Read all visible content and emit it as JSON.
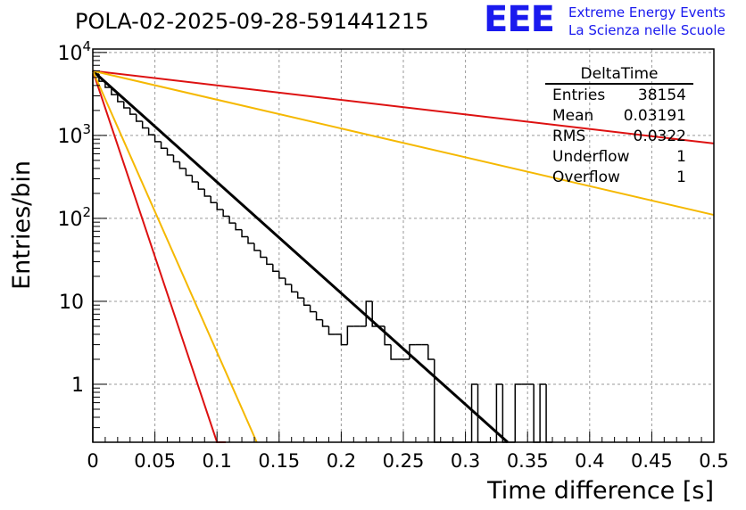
{
  "title": "POLA-02-2025-09-28-591441215",
  "logo": {
    "mark": "EEE",
    "line1": "Extreme Energy Events",
    "line2": "La Scienza nelle Scuole",
    "color": "#1a1aee"
  },
  "stats": {
    "name": "DeltaTime",
    "rows": [
      {
        "label": "Entries",
        "value": "38154"
      },
      {
        "label": "Mean",
        "value": "0.03191"
      },
      {
        "label": "RMS",
        "value": "0.0322"
      },
      {
        "label": "Underflow",
        "value": "1"
      },
      {
        "label": "Overflow",
        "value": "1"
      }
    ]
  },
  "chart_data": {
    "type": "line",
    "title": "POLA-02-2025-09-28-591441215",
    "xlabel": "Time difference [s]",
    "ylabel": "Entries/bin",
    "xlim": [
      0,
      0.5
    ],
    "ylim": [
      0.2,
      11000
    ],
    "yscale": "log",
    "grid": true,
    "xticks": [
      {
        "v": 0,
        "label": "0"
      },
      {
        "v": 0.05,
        "label": "0.05"
      },
      {
        "v": 0.1,
        "label": "0.1"
      },
      {
        "v": 0.15,
        "label": "0.15"
      },
      {
        "v": 0.2,
        "label": "0.2"
      },
      {
        "v": 0.25,
        "label": "0.25"
      },
      {
        "v": 0.3,
        "label": "0.3"
      },
      {
        "v": 0.35,
        "label": "0.35"
      },
      {
        "v": 0.4,
        "label": "0.4"
      },
      {
        "v": 0.45,
        "label": "0.45"
      },
      {
        "v": 0.5,
        "label": "0.5"
      }
    ],
    "yticks": [
      {
        "v": 1,
        "base": "1",
        "exp": ""
      },
      {
        "v": 10,
        "base": "10",
        "exp": ""
      },
      {
        "v": 100,
        "base": "10",
        "exp": "2"
      },
      {
        "v": 1000,
        "base": "10",
        "exp": "3"
      },
      {
        "v": 10000,
        "base": "10",
        "exp": "4"
      }
    ],
    "histogram": {
      "name": "DeltaTime",
      "color": "#000000",
      "bin_width": 0.005,
      "bins": [
        {
          "x0": 0.0,
          "y": 5500
        },
        {
          "x0": 0.005,
          "y": 4500
        },
        {
          "x0": 0.01,
          "y": 3800
        },
        {
          "x0": 0.015,
          "y": 3100
        },
        {
          "x0": 0.02,
          "y": 2550
        },
        {
          "x0": 0.025,
          "y": 2150
        },
        {
          "x0": 0.03,
          "y": 1800
        },
        {
          "x0": 0.035,
          "y": 1480
        },
        {
          "x0": 0.04,
          "y": 1230
        },
        {
          "x0": 0.045,
          "y": 1020
        },
        {
          "x0": 0.05,
          "y": 840
        },
        {
          "x0": 0.055,
          "y": 700
        },
        {
          "x0": 0.06,
          "y": 580
        },
        {
          "x0": 0.065,
          "y": 480
        },
        {
          "x0": 0.07,
          "y": 400
        },
        {
          "x0": 0.075,
          "y": 330
        },
        {
          "x0": 0.08,
          "y": 275
        },
        {
          "x0": 0.085,
          "y": 225
        },
        {
          "x0": 0.09,
          "y": 185
        },
        {
          "x0": 0.095,
          "y": 155
        },
        {
          "x0": 0.1,
          "y": 128
        },
        {
          "x0": 0.105,
          "y": 106
        },
        {
          "x0": 0.11,
          "y": 88
        },
        {
          "x0": 0.115,
          "y": 73
        },
        {
          "x0": 0.12,
          "y": 60
        },
        {
          "x0": 0.125,
          "y": 50
        },
        {
          "x0": 0.13,
          "y": 41
        },
        {
          "x0": 0.135,
          "y": 34
        },
        {
          "x0": 0.14,
          "y": 28
        },
        {
          "x0": 0.145,
          "y": 23
        },
        {
          "x0": 0.15,
          "y": 19
        },
        {
          "x0": 0.155,
          "y": 16
        },
        {
          "x0": 0.16,
          "y": 13
        },
        {
          "x0": 0.165,
          "y": 11
        },
        {
          "x0": 0.17,
          "y": 9
        },
        {
          "x0": 0.175,
          "y": 7.5
        },
        {
          "x0": 0.18,
          "y": 6
        },
        {
          "x0": 0.185,
          "y": 5
        },
        {
          "x0": 0.19,
          "y": 4
        },
        {
          "x0": 0.195,
          "y": 4
        },
        {
          "x0": 0.2,
          "y": 3
        },
        {
          "x0": 0.205,
          "y": 5
        },
        {
          "x0": 0.21,
          "y": 5
        },
        {
          "x0": 0.215,
          "y": 5
        },
        {
          "x0": 0.22,
          "y": 10
        },
        {
          "x0": 0.225,
          "y": 5
        },
        {
          "x0": 0.23,
          "y": 5
        },
        {
          "x0": 0.235,
          "y": 3
        },
        {
          "x0": 0.24,
          "y": 2
        },
        {
          "x0": 0.245,
          "y": 2
        },
        {
          "x0": 0.25,
          "y": 2
        },
        {
          "x0": 0.255,
          "y": 3
        },
        {
          "x0": 0.26,
          "y": 3
        },
        {
          "x0": 0.265,
          "y": 3
        },
        {
          "x0": 0.27,
          "y": 2
        },
        {
          "x0": 0.275,
          "y": 0
        },
        {
          "x0": 0.28,
          "y": 0
        },
        {
          "x0": 0.285,
          "y": 0
        },
        {
          "x0": 0.29,
          "y": 0
        },
        {
          "x0": 0.295,
          "y": 0
        },
        {
          "x0": 0.3,
          "y": 0
        },
        {
          "x0": 0.305,
          "y": 1
        },
        {
          "x0": 0.31,
          "y": 0
        },
        {
          "x0": 0.315,
          "y": 0
        },
        {
          "x0": 0.32,
          "y": 0
        },
        {
          "x0": 0.325,
          "y": 1
        },
        {
          "x0": 0.33,
          "y": 0
        },
        {
          "x0": 0.335,
          "y": 0
        },
        {
          "x0": 0.34,
          "y": 1
        },
        {
          "x0": 0.345,
          "y": 1
        },
        {
          "x0": 0.35,
          "y": 1
        },
        {
          "x0": 0.355,
          "y": 0
        },
        {
          "x0": 0.36,
          "y": 1
        },
        {
          "x0": 0.365,
          "y": 0
        }
      ]
    },
    "fit_lines": [
      {
        "name": "fit-black",
        "color": "#000000",
        "width": 3,
        "x": [
          0.0,
          0.334
        ],
        "y": [
          6000,
          0.2
        ]
      },
      {
        "name": "fit-red-steep",
        "color": "#dd1111",
        "width": 2,
        "x": [
          0.0,
          0.1,
          0.107
        ],
        "y": [
          6000,
          0.2,
          0.2
        ]
      },
      {
        "name": "fit-orange-steep",
        "color": "#f5b800",
        "width": 2,
        "x": [
          0.0,
          0.132
        ],
        "y": [
          6000,
          0.2
        ]
      },
      {
        "name": "fit-red-shallow",
        "color": "#dd1111",
        "width": 2,
        "x": [
          0.0,
          0.5
        ],
        "y": [
          6000,
          800
        ]
      },
      {
        "name": "fit-orange-shallow",
        "color": "#f5b800",
        "width": 2,
        "x": [
          0.0,
          0.5
        ],
        "y": [
          6000,
          110
        ]
      }
    ]
  }
}
